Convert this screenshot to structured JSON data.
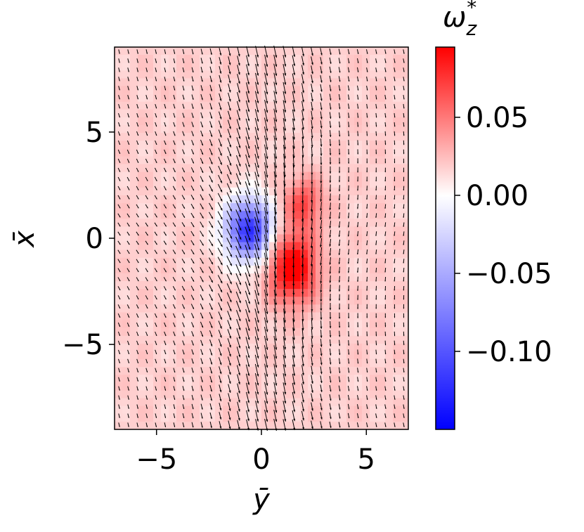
{
  "chart_data": {
    "type": "heatmap",
    "title": "",
    "xlabel": "ȳ",
    "ylabel": "x̄",
    "x_range": [
      -7,
      7
    ],
    "y_range": [
      -9,
      9
    ],
    "x_ticks": [
      -5,
      0,
      5
    ],
    "y_ticks": [
      5,
      0,
      -5
    ],
    "x_tick_labels": [
      "−5",
      "0",
      "5"
    ],
    "y_tick_labels": [
      "5",
      "0",
      "−5"
    ],
    "grid": false,
    "overlay": "quiver vector field (black arrows)",
    "colorbar": {
      "label": "ω",
      "label_sub": "z",
      "label_sup": "*",
      "colormap": "bwr",
      "range": [
        -0.15,
        0.095
      ],
      "ticks": [
        0.05,
        0.0,
        -0.05,
        -0.1
      ],
      "tick_labels": [
        "0.05",
        "0.00",
        "−0.05",
        "−0.10"
      ]
    },
    "field_features": [
      {
        "type": "vortex_negative",
        "x": -0.6,
        "y": 0.4,
        "peak": -0.14,
        "sx": 1.1,
        "sy": 1.4
      },
      {
        "type": "vortex_positive",
        "x": 1.5,
        "y": -1.4,
        "peak": 0.09,
        "sx": 1.1,
        "sy": 1.6
      },
      {
        "type": "vortex_positive",
        "x": 2.0,
        "y": 1.6,
        "peak": 0.05,
        "sx": 0.9,
        "sy": 1.2
      },
      {
        "type": "background",
        "value": 0.018
      }
    ],
    "colors": {
      "negative": "#0000ff",
      "zero": "#ffffff",
      "positive": "#ff0000",
      "arrows": "#000000"
    }
  }
}
